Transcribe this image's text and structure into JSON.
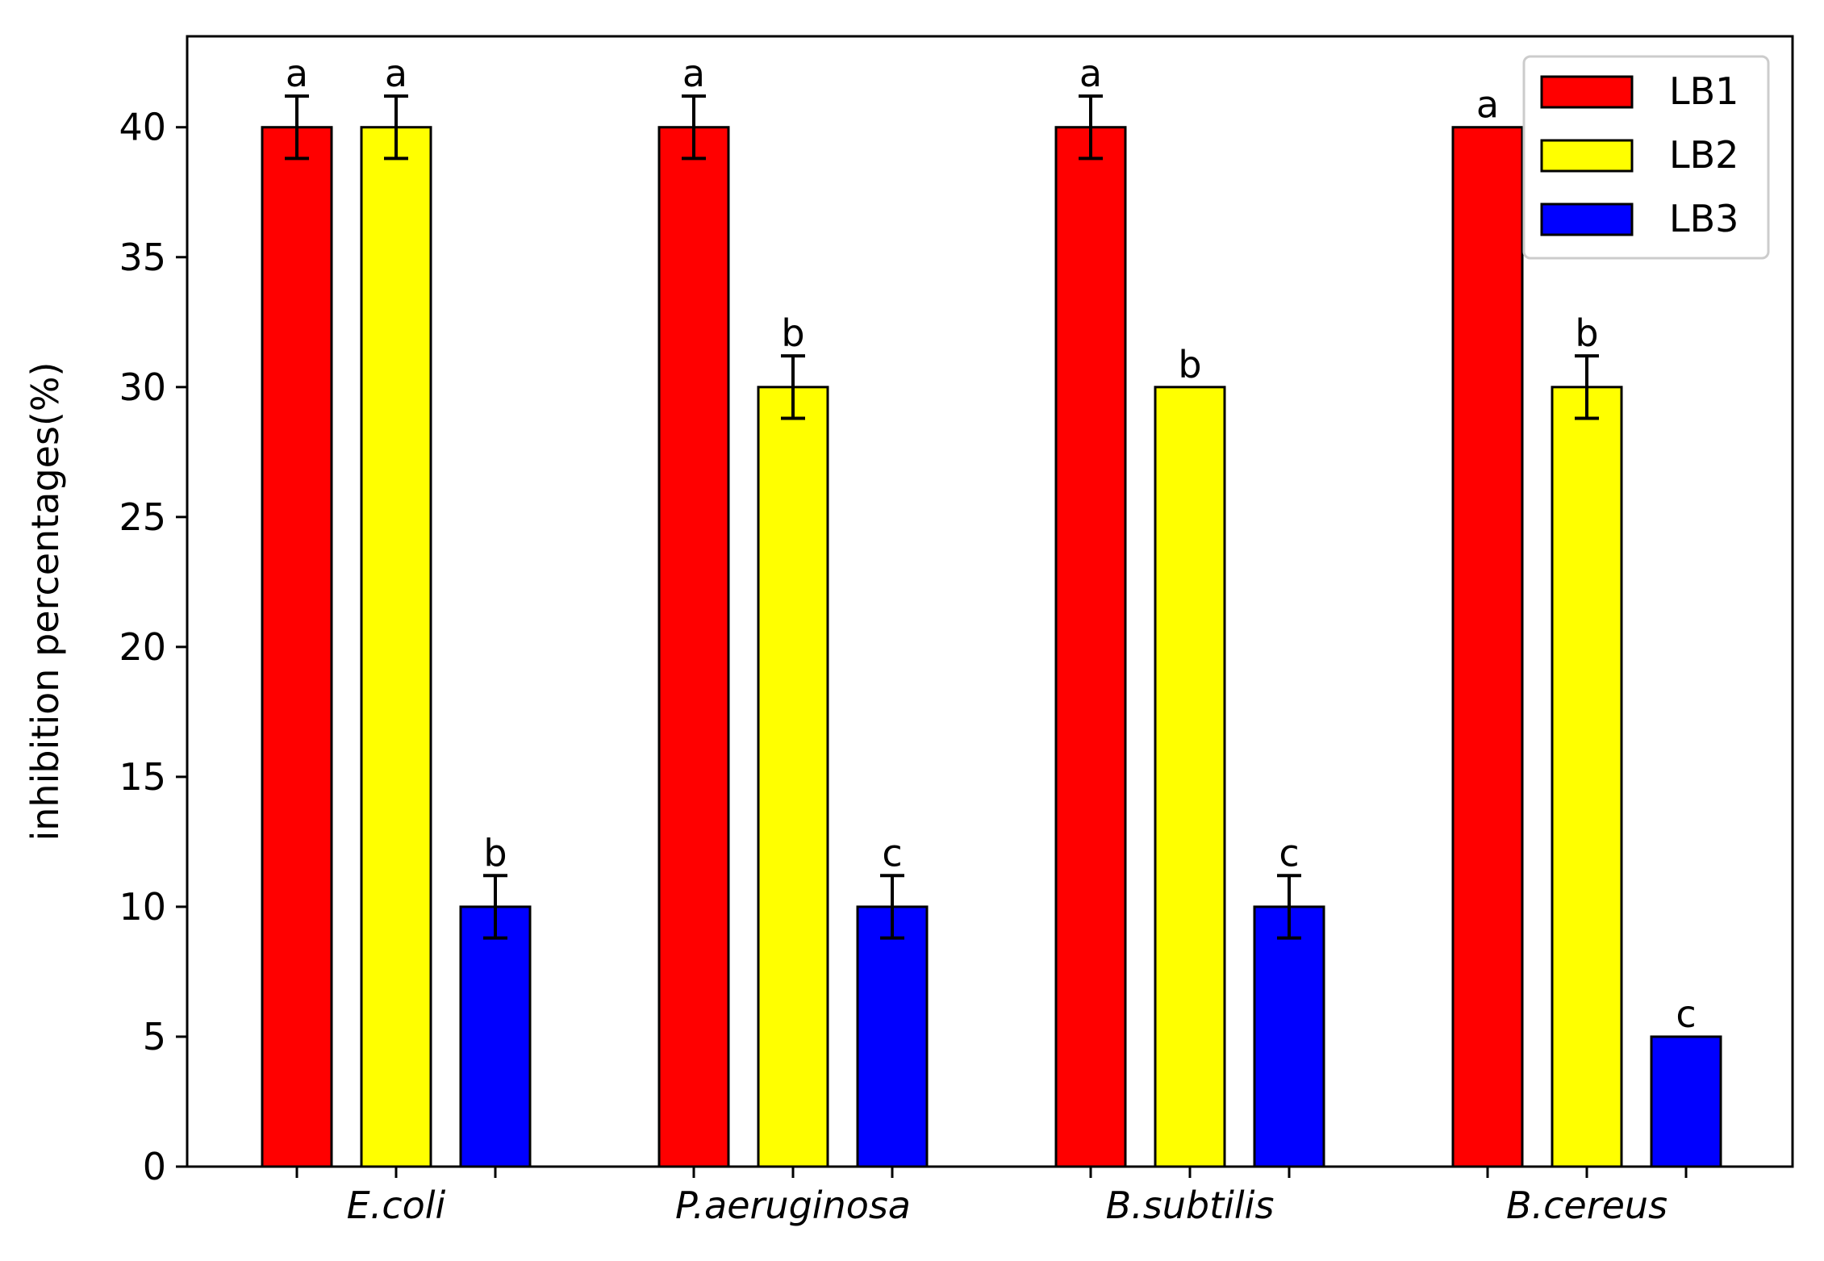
{
  "chart_data": {
    "type": "bar",
    "title": "",
    "xlabel": "",
    "ylabel": "inhibition percentages(%)",
    "categories": [
      "E.coli",
      "P.aeruginosa",
      "B.subtilis",
      "B.cereus"
    ],
    "ylim": [
      0,
      43.5
    ],
    "yticks": [
      0,
      5,
      10,
      15,
      20,
      25,
      30,
      35,
      40
    ],
    "grid": false,
    "legend_position": "top-right",
    "series": [
      {
        "name": "LB1",
        "color": "#ff0000",
        "values": [
          40,
          40,
          40,
          40
        ],
        "errors": [
          1.2,
          1.2,
          1.2,
          0
        ],
        "letters": [
          "a",
          "a",
          "a",
          "a"
        ]
      },
      {
        "name": "LB2",
        "color": "#ffff00",
        "values": [
          40,
          30,
          30,
          30
        ],
        "errors": [
          1.2,
          1.2,
          0,
          1.2
        ],
        "letters": [
          "a",
          "b",
          "b",
          "b"
        ]
      },
      {
        "name": "LB3",
        "color": "#0000ff",
        "values": [
          10,
          10,
          10,
          5
        ],
        "errors": [
          1.2,
          1.2,
          1.2,
          0
        ],
        "letters": [
          "b",
          "c",
          "c",
          "c"
        ]
      }
    ]
  }
}
